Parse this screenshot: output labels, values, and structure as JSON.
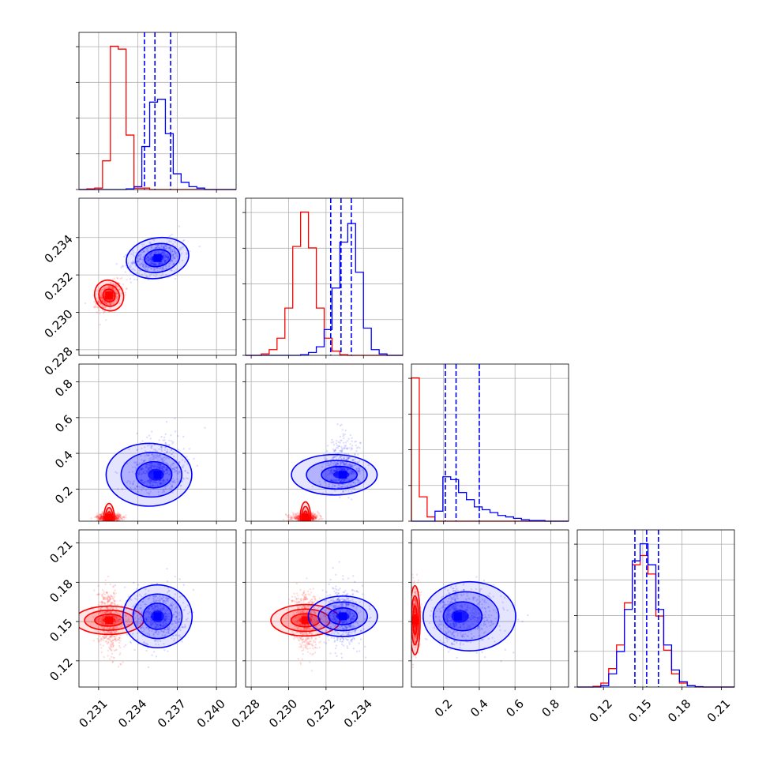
{
  "chart_data": {
    "type": "corner",
    "grid": true,
    "parameters": [
      {
        "range": [
          0.2295,
          0.2415
        ],
        "ticks": [
          0.231,
          0.234,
          0.237,
          0.24
        ],
        "tick_labels": [
          "0.231",
          "0.234",
          "0.237",
          "0.240"
        ]
      },
      {
        "range": [
          0.2277,
          0.2361
        ],
        "ticks": [
          0.228,
          0.23,
          0.232,
          0.234
        ],
        "tick_labels": [
          "0.228",
          "0.230",
          "0.232",
          "0.234"
        ]
      },
      {
        "range": [
          0.02,
          0.9
        ],
        "ticks": [
          0.2,
          0.4,
          0.6,
          0.8
        ],
        "tick_labels": [
          "0.2",
          "0.4",
          "0.6",
          "0.8"
        ]
      },
      {
        "range": [
          0.1,
          0.22
        ],
        "ticks": [
          0.12,
          0.15,
          0.18,
          0.21
        ],
        "tick_labels": [
          "0.12",
          "0.15",
          "0.18",
          "0.21"
        ]
      }
    ],
    "series": [
      {
        "color": "#ff0000",
        "means": [
          0.2318,
          0.2309,
          0.04,
          0.151
        ],
        "sds": [
          0.00045,
          0.00035,
          0.012,
          0.011
        ],
        "corr": [
          [
            0,
            1,
            0.4
          ],
          [
            0,
            3,
            -0.2
          ],
          [
            1,
            3,
            -0.1
          ]
        ],
        "quantile_lines": false,
        "histograms": [
          {
            "edges": [
              0.2295,
              0.2301,
              0.2307,
              0.2313,
              0.2319,
              0.2325,
              0.2331,
              0.2337,
              0.2343,
              0.2349,
              0.2355,
              0.2361,
              0.2367,
              0.2373,
              0.2379,
              0.2385,
              0.2391,
              0.2397,
              0.2403,
              0.2409,
              0.2415
            ],
            "counts": [
              0,
              0.5,
              1,
              20,
              100,
              98,
              38,
              1,
              1,
              0,
              0,
              0,
              0,
              0,
              0,
              0,
              0,
              0,
              0,
              0
            ]
          },
          {
            "edges": [
              0.2277,
              0.22812,
              0.22854,
              0.22896,
              0.22938,
              0.2298,
              0.23022,
              0.23064,
              0.23106,
              0.23148,
              0.2319,
              0.23232,
              0.23274,
              0.23316,
              0.23358,
              0.234,
              0.23442,
              0.23484,
              0.23526,
              0.23568,
              0.2361
            ],
            "counts": [
              0,
              0,
              1,
              4,
              12,
              33,
              76,
              100,
              75,
              33,
              12,
              3,
              0.5,
              0,
              0,
              0,
              0,
              0,
              0,
              0
            ]
          },
          {
            "edges": [
              0.02,
              0.064,
              0.108,
              0.152,
              0.196,
              0.24,
              0.284,
              0.328,
              0.372,
              0.416,
              0.46,
              0.504,
              0.548,
              0.592,
              0.636,
              0.68,
              0.724,
              0.768,
              0.812,
              0.856,
              0.9
            ],
            "counts": [
              100,
              17,
              3,
              0,
              0,
              0,
              0,
              0,
              0,
              0,
              0,
              0,
              0,
              0,
              0,
              0,
              0,
              0,
              0,
              0
            ]
          },
          {
            "edges": [
              0.1,
              0.106,
              0.112,
              0.118,
              0.124,
              0.13,
              0.136,
              0.142,
              0.148,
              0.154,
              0.16,
              0.166,
              0.172,
              0.178,
              0.184,
              0.19,
              0.196,
              0.202,
              0.208,
              0.214,
              0.22
            ],
            "counts": [
              0,
              0,
              0.5,
              3,
              14,
              32,
              64,
              93,
              100,
              86,
              54,
              28,
              10,
              3,
              1,
              0,
              0,
              0,
              0,
              0
            ]
          }
        ]
      },
      {
        "color": "#0000ff",
        "means": [
          0.2355,
          0.2329,
          0.28,
          0.154
        ],
        "sds": [
          0.001,
          0.00045,
          0.08,
          0.011
        ],
        "corr": [
          [
            0,
            1,
            0.3
          ],
          [
            0,
            2,
            0.1
          ],
          [
            1,
            2,
            0.05
          ]
        ],
        "quantiles": [
          [
            0.2345,
            0.2353,
            0.2365
          ],
          [
            0.23225,
            0.2328,
            0.23335
          ],
          [
            0.21,
            0.27,
            0.4
          ],
          [
            0.144,
            0.153,
            0.162
          ]
        ],
        "quantile_lines": true,
        "histograms": [
          {
            "edges": [
              0.2295,
              0.2301,
              0.2307,
              0.2313,
              0.2319,
              0.2325,
              0.2331,
              0.2337,
              0.2343,
              0.2349,
              0.2355,
              0.2361,
              0.2367,
              0.2373,
              0.2379,
              0.2385,
              0.2391,
              0.2397,
              0.2403,
              0.2409,
              0.2415
            ],
            "counts": [
              0,
              0,
              0,
              0,
              0,
              0,
              0.5,
              2,
              30,
              61,
              63,
              39,
              11,
              5,
              2,
              1,
              0,
              0,
              0,
              0
            ]
          },
          {
            "edges": [
              0.2277,
              0.22812,
              0.22854,
              0.22896,
              0.22938,
              0.2298,
              0.23022,
              0.23064,
              0.23106,
              0.23148,
              0.2319,
              0.23232,
              0.23274,
              0.23316,
              0.23358,
              0.234,
              0.23442,
              0.23484,
              0.23526,
              0.23568,
              0.2361
            ],
            "counts": [
              0,
              0,
              0,
              0,
              0,
              0,
              0,
              0.5,
              2,
              6,
              18,
              47,
              79,
              92,
              58,
              19,
              4,
              1,
              0,
              0
            ]
          },
          {
            "edges": [
              0.02,
              0.064,
              0.108,
              0.152,
              0.196,
              0.24,
              0.284,
              0.328,
              0.372,
              0.416,
              0.46,
              0.504,
              0.548,
              0.592,
              0.636,
              0.68,
              0.724,
              0.768,
              0.812,
              0.856,
              0.9
            ],
            "counts": [
              0,
              0,
              0,
              7,
              31,
              29,
              20,
              15,
              10,
              8,
              6,
              4,
              3,
              2,
              1,
              0.5,
              0.5,
              0,
              0,
              0
            ]
          },
          {
            "edges": [
              0.1,
              0.106,
              0.112,
              0.118,
              0.124,
              0.13,
              0.136,
              0.142,
              0.148,
              0.154,
              0.16,
              0.166,
              0.172,
              0.178,
              0.184,
              0.19,
              0.196,
              0.202,
              0.208,
              0.214,
              0.22
            ],
            "counts": [
              0,
              0,
              0,
              1,
              10,
              27,
              59,
              96,
              109,
              93,
              59,
              32,
              13,
              4,
              1,
              0.3,
              0,
              0,
              0,
              0
            ]
          }
        ]
      }
    ]
  }
}
